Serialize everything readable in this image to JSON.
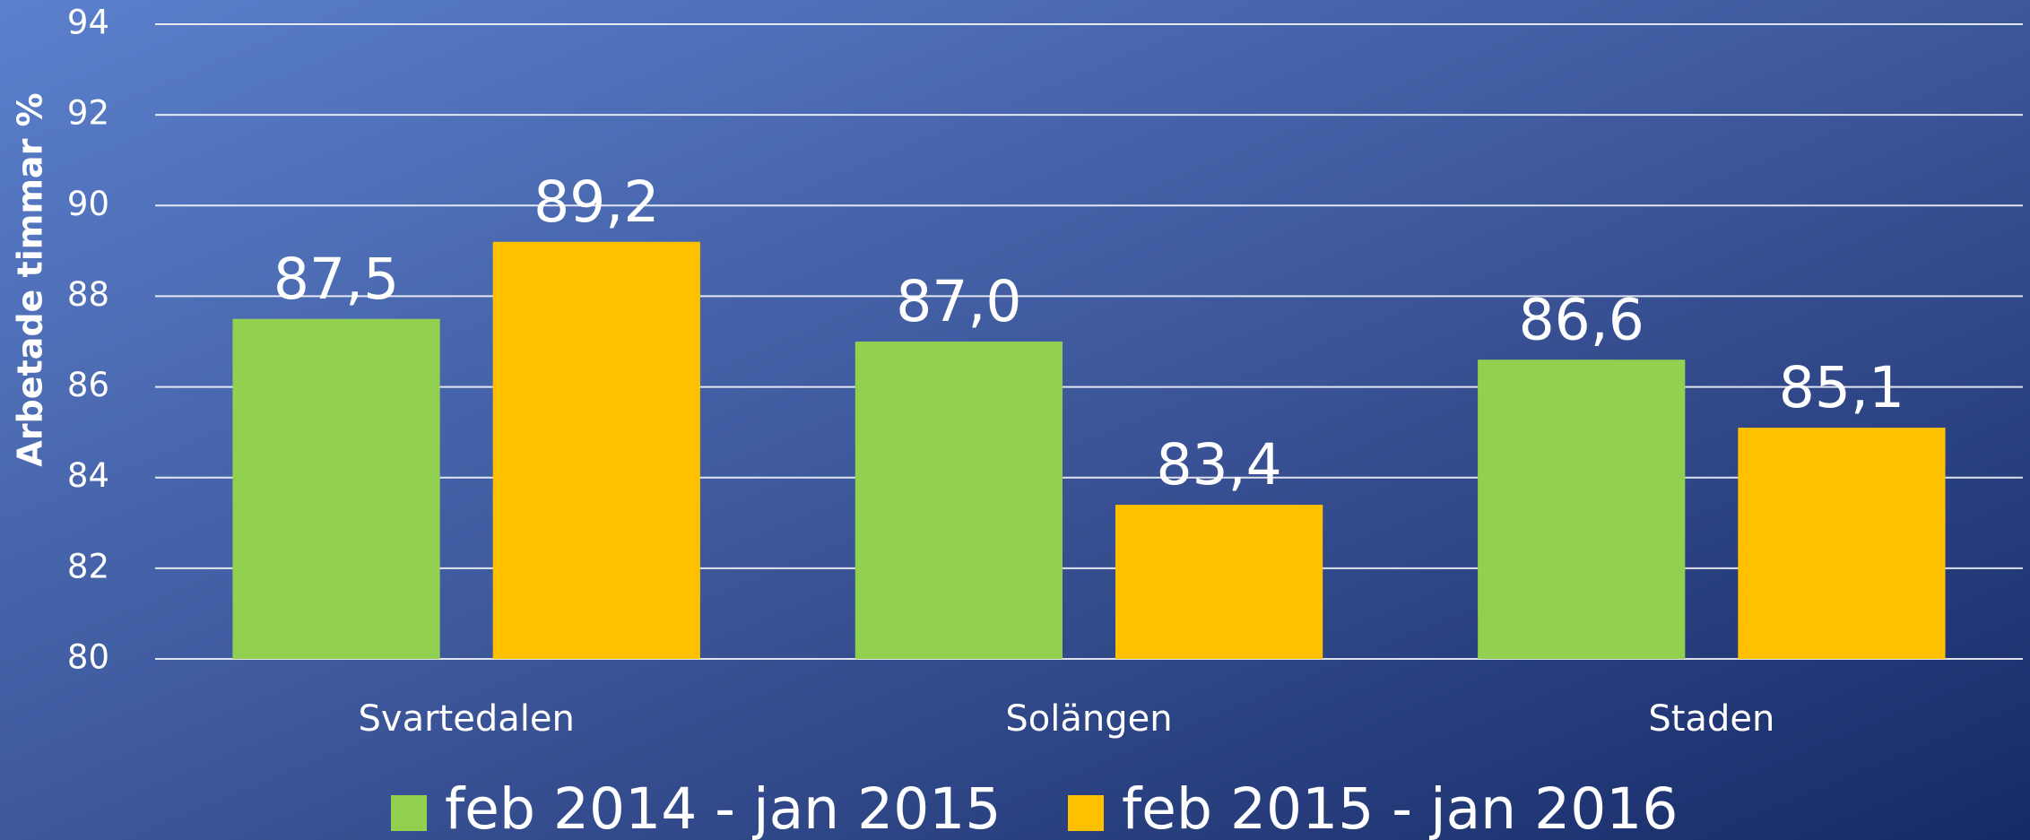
{
  "chart_data": {
    "type": "bar",
    "y_label": "Arbetade timmar %",
    "categories": [
      "Svartedalen",
      "Solängen",
      "Staden"
    ],
    "series": [
      {
        "name": "feb 2014 - jan 2015",
        "color": "#92d050",
        "values": [
          87.5,
          87.0,
          86.6
        ],
        "value_labels": [
          "87,5",
          "87,0",
          "86,6"
        ]
      },
      {
        "name": "feb 2015 - jan 2016",
        "color": "#ffc000",
        "values": [
          89.2,
          83.4,
          85.1
        ],
        "value_labels": [
          "89,2",
          "83,4",
          "85,1"
        ]
      }
    ],
    "ylim": [
      80,
      94
    ],
    "yticks": [
      80,
      82,
      84,
      86,
      88,
      90,
      92,
      94
    ],
    "grid": true,
    "legend": "bottom"
  }
}
